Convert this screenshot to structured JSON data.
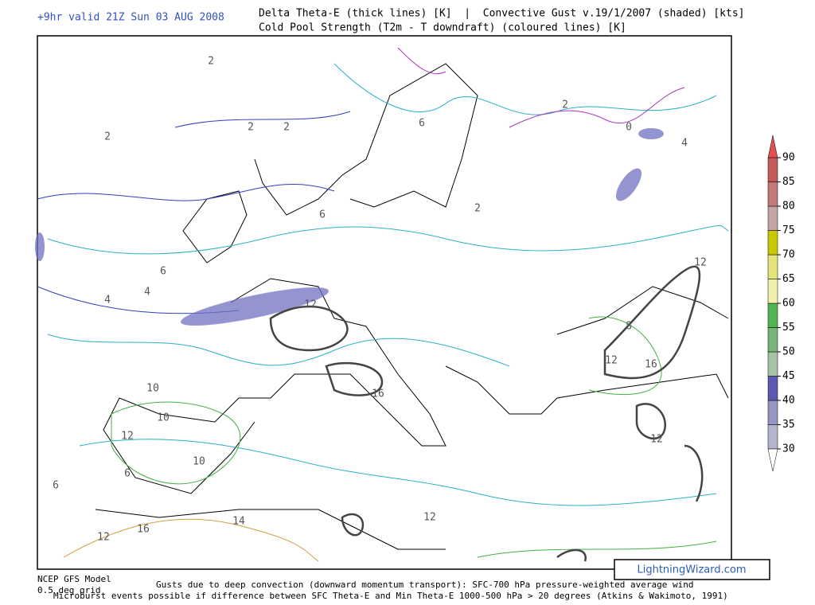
{
  "header": {
    "valid": "+9hr valid 21Z Sun 03 AUG 2008",
    "title_line1": "Delta Theta-E (thick lines) [K]  |  Convective Gust v.19/1/2007 (shaded) [kts]",
    "title_line2": "Cold Pool Strength (T2m - T downdraft) (coloured lines) [K]"
  },
  "colorbar": {
    "ticks": [
      30,
      35,
      40,
      45,
      50,
      55,
      60,
      65,
      70,
      75,
      80,
      85,
      90
    ],
    "colors": [
      "#b4b4cc",
      "#9696c4",
      "#5a5ab4",
      "#a4c4a4",
      "#78b478",
      "#50b450",
      "#f0f0a8",
      "#e4e478",
      "#c8c800",
      "#c4a4a4",
      "#c47878",
      "#c45a5a"
    ]
  },
  "contour_labels": [
    "2",
    "2",
    "2",
    "2",
    "4",
    "4",
    "6",
    "6",
    "6",
    "2",
    "0",
    "2",
    "4",
    "12",
    "12",
    "16",
    "16",
    "12",
    "10",
    "10",
    "12",
    "16",
    "14",
    "12",
    "12",
    "8",
    "6",
    "6",
    "10",
    "12"
  ],
  "footer": {
    "model": "NCEP GFS Model",
    "grid": "0.5 deg grid",
    "gusts": "Gusts due to deep convection (downward momentum transport): SFC-700 hPa pressure-weighted average wind",
    "microburst": "Microburst events possible if difference between SFC Theta-E and Min Theta-E 1000-500 hPa > 20 degrees (Atkins & Wakimoto, 1991)"
  },
  "watermark": "LightningWizard.com"
}
